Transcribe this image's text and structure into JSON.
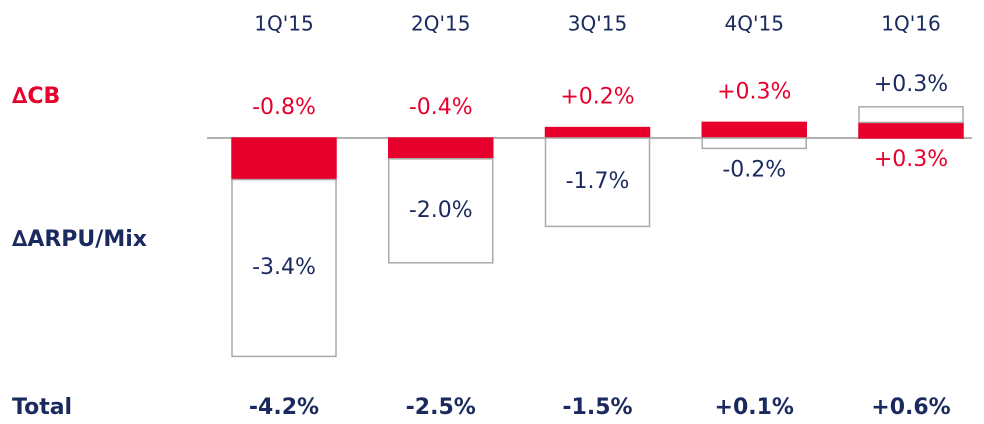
{
  "chart_data": {
    "type": "bar",
    "stacked": true,
    "categories": [
      "1Q'15",
      "2Q'15",
      "3Q'15",
      "4Q'15",
      "1Q'16"
    ],
    "series": [
      {
        "name": "∆CB",
        "color": "#e8002d",
        "values": [
          -0.8,
          -0.4,
          0.2,
          0.3,
          0.3
        ],
        "value_labels": [
          "-0.8%",
          "-0.4%",
          "+0.2%",
          "+0.3%",
          "+0.3%"
        ]
      },
      {
        "name": "∆ARPU/Mix",
        "color": "#ffffff",
        "values": [
          -3.4,
          -2.0,
          -1.7,
          -0.2,
          0.3
        ],
        "value_labels": [
          "-3.4%",
          "-2.0%",
          "-1.7%",
          "-0.2%",
          "+0.3%"
        ]
      }
    ],
    "totals": {
      "name": "Total",
      "values": [
        -4.2,
        -2.5,
        -1.5,
        0.1,
        0.6
      ],
      "value_labels": [
        "-4.2%",
        "-2.5%",
        "-1.5%",
        "+0.1%",
        "+0.6%"
      ]
    }
  }
}
